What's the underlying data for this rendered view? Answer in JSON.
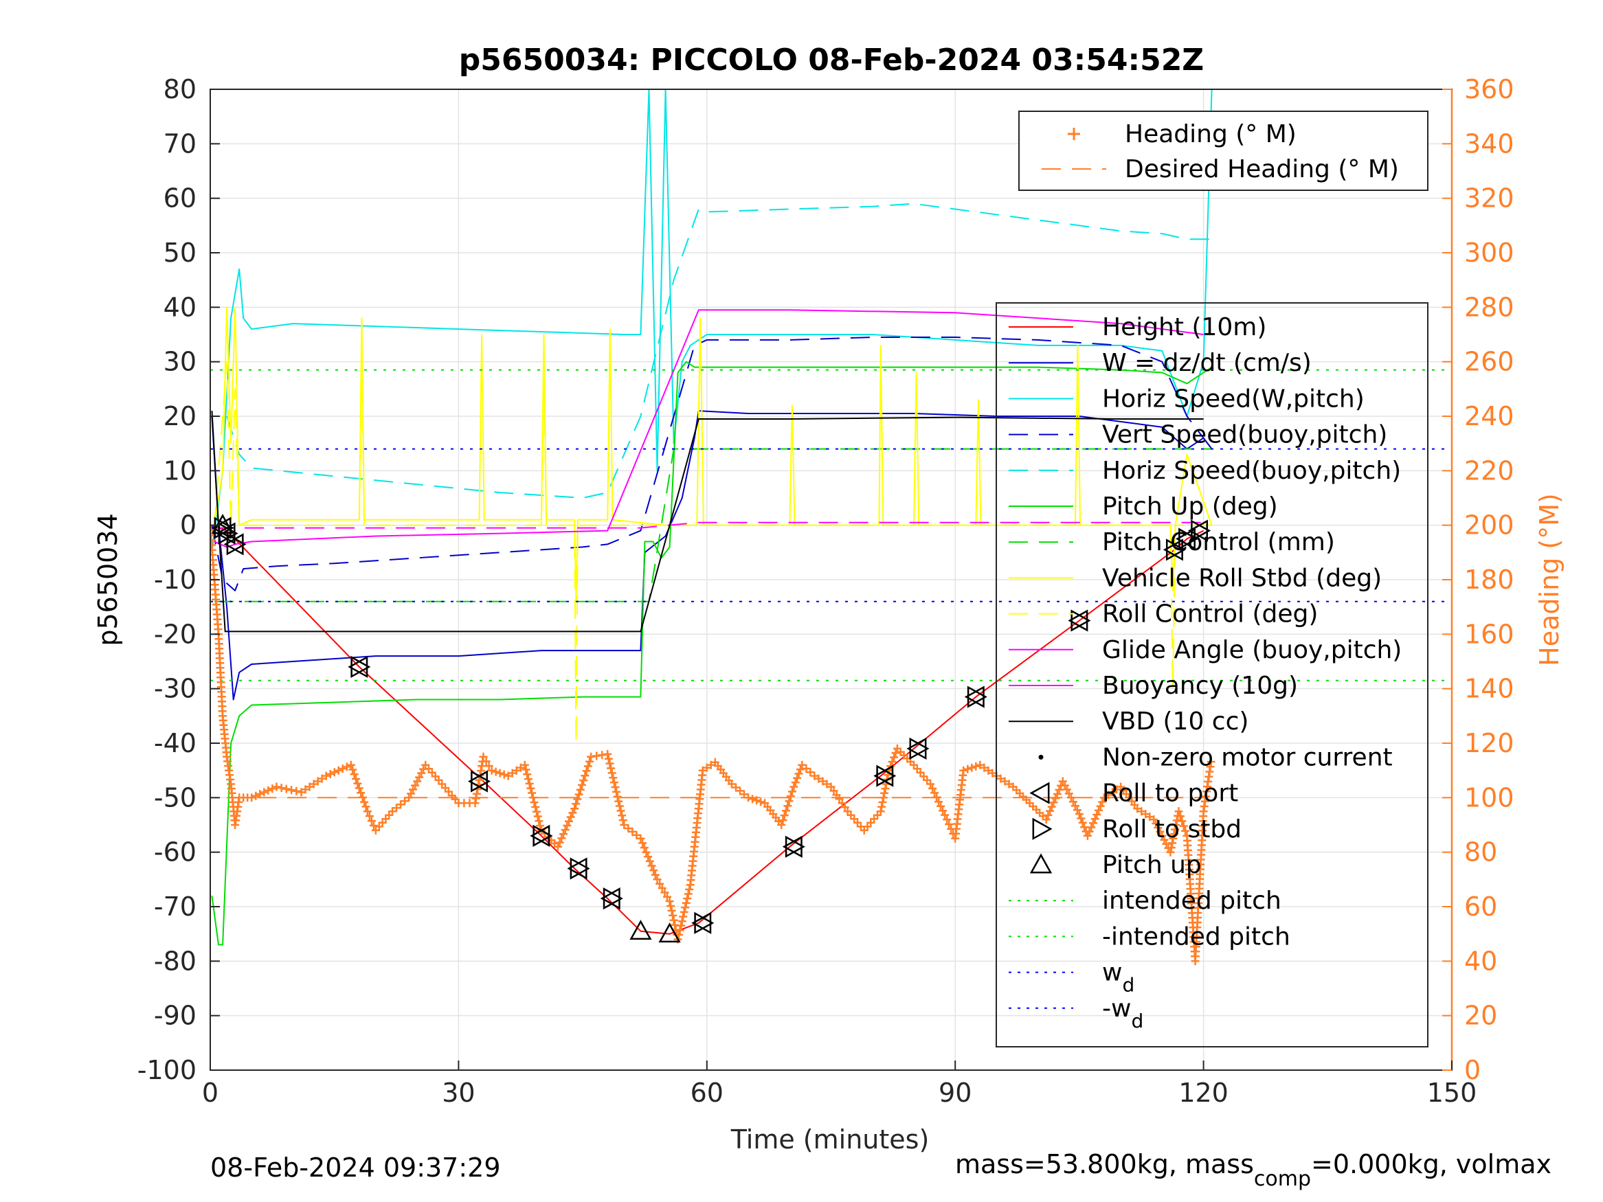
{
  "chart_data": {
    "type": "line",
    "title": "p5650034: PICCOLO 08-Feb-2024 03:54:52Z",
    "xlabel": "Time (minutes)",
    "ylabel": "p5650034",
    "y2label": "Heading (°M)",
    "xlim": [
      0,
      150
    ],
    "ylim": [
      -100,
      80
    ],
    "y2lim": [
      0,
      360
    ],
    "xticks": [
      "0",
      "30",
      "60",
      "90",
      "120",
      "150"
    ],
    "yticks": [
      "80",
      "70",
      "60",
      "50",
      "40",
      "30",
      "20",
      "10",
      "0",
      "-10",
      "-20",
      "-30",
      "-40",
      "-50",
      "-60",
      "-70",
      "-80",
      "-90",
      "-100"
    ],
    "y2ticks": [
      "360",
      "340",
      "320",
      "300",
      "280",
      "260",
      "240",
      "220",
      "200",
      "180",
      "160",
      "140",
      "120",
      "100",
      "80",
      "60",
      "40",
      "20",
      "0"
    ],
    "grid": true,
    "colors": {
      "heading": "#ff7f27",
      "height": "#ff0000",
      "w": "#0000cc",
      "horiz": "#00e5e5",
      "pitch": "#00dd00",
      "roll": "#ffff00",
      "glide": "#ff00ff",
      "vbd": "#000000",
      "wd": "#0000ff"
    },
    "legend_top": {
      "position": "top-right",
      "entries": [
        {
          "label": "Heading (° M)",
          "color": "#ff7f27",
          "style": "plus"
        },
        {
          "label": "Desired Heading (° M)",
          "color": "#ff7f27",
          "style": "dashed"
        }
      ]
    },
    "legend_main": {
      "position": "right",
      "entries": [
        {
          "label": "Height (10m)",
          "color": "#ff0000",
          "style": "solid"
        },
        {
          "label": "W = dz/dt (cm/s)",
          "color": "#0000cc",
          "style": "solid"
        },
        {
          "label": "Horiz Speed(W,pitch)",
          "color": "#00e5e5",
          "style": "solid"
        },
        {
          "label": "Vert Speed(buoy,pitch)",
          "color": "#0000cc",
          "style": "dashed"
        },
        {
          "label": "Horiz Speed(buoy,pitch)",
          "color": "#00e5e5",
          "style": "dashed"
        },
        {
          "label": "Pitch Up (deg)",
          "color": "#00dd00",
          "style": "solid"
        },
        {
          "label": "Pitch Control (mm)",
          "color": "#00dd00",
          "style": "dashed"
        },
        {
          "label": "Vehicle Roll Stbd (deg)",
          "color": "#ffff00",
          "style": "solid"
        },
        {
          "label": "Roll Control (deg)",
          "color": "#ffff00",
          "style": "dashed"
        },
        {
          "label": "Glide Angle (buoy,pitch)",
          "color": "#ff00ff",
          "style": "solid"
        },
        {
          "label": "Buoyancy (10g)",
          "color": "#ff00ff",
          "style": "solid"
        },
        {
          "label": "VBD (10 cc)",
          "color": "#000000",
          "style": "solid"
        },
        {
          "label": "Non-zero motor current",
          "color": "#000000",
          "style": "dot"
        },
        {
          "label": "Roll to port",
          "color": "#000000",
          "style": "tri-left"
        },
        {
          "label": "Roll to stbd",
          "color": "#000000",
          "style": "tri-right"
        },
        {
          "label": "Pitch up",
          "color": "#000000",
          "style": "tri-up"
        },
        {
          "label": "intended pitch",
          "color": "#00dd00",
          "style": "dotted"
        },
        {
          "label": "-intended pitch",
          "color": "#00dd00",
          "style": "dotted"
        },
        {
          "label": "w",
          "sub": "d",
          "color": "#0000ff",
          "style": "dotted"
        },
        {
          "label": "-w",
          "sub": "d",
          "color": "#0000ff",
          "style": "dotted"
        }
      ]
    },
    "series": [
      {
        "key": "height",
        "color": "#ff0000",
        "dash": "",
        "width": 2,
        "axis": "left",
        "x": [
          0,
          2,
          18,
          33,
          40,
          44,
          48,
          52,
          55.5,
          59,
          70,
          81,
          85,
          92.5,
          105,
          116.5,
          118,
          120
        ],
        "y": [
          0,
          -1,
          -26,
          -47,
          -57,
          -63,
          -68.5,
          -74.5,
          -75,
          -73,
          -59,
          -46,
          -41,
          -31.5,
          -17.5,
          -4.5,
          -2.5,
          -1
        ]
      },
      {
        "key": "w",
        "color": "#0000cc",
        "dash": "",
        "width": 2,
        "axis": "left",
        "x": [
          0.2,
          1,
          2,
          2.8,
          3.5,
          5,
          10,
          20,
          30,
          40,
          50,
          52,
          52.5,
          55,
          57,
          58.5,
          59,
          65,
          75,
          85,
          95,
          105,
          110,
          115,
          118,
          120,
          121
        ],
        "y": [
          20,
          0,
          -15,
          -32,
          -27,
          -25.5,
          -25,
          -24,
          -24,
          -23,
          -23,
          -23,
          -5,
          -2,
          5,
          16,
          21,
          20.5,
          20.5,
          20.5,
          20,
          20,
          19,
          18,
          14,
          16,
          14
        ]
      },
      {
        "key": "horiz_w",
        "color": "#00e5e5",
        "dash": "",
        "width": 2,
        "axis": "left",
        "x": [
          0.2,
          1.5,
          2.5,
          3.5,
          4,
          5,
          10,
          20,
          30,
          40,
          50,
          52,
          53,
          54,
          55,
          56,
          57,
          58,
          60,
          70,
          80,
          90,
          100,
          110,
          115,
          118,
          120,
          121
        ],
        "y": [
          -5,
          10,
          38,
          47,
          38,
          36,
          37,
          36.5,
          36,
          35.5,
          35,
          35,
          80,
          10,
          80,
          15,
          30,
          33,
          35,
          35,
          35,
          34,
          33,
          33,
          32,
          20,
          30,
          80
        ]
      },
      {
        "key": "vert_buoy",
        "color": "#0000cc",
        "dash": "28,16",
        "width": 2,
        "axis": "left",
        "x": [
          0.2,
          1.5,
          3,
          4,
          8,
          15,
          25,
          35,
          45,
          48,
          52,
          56,
          58.5,
          60,
          70,
          80,
          90,
          100,
          110,
          115,
          118,
          121
        ],
        "y": [
          0,
          -10,
          -12,
          -8,
          -7.5,
          -7,
          -6,
          -5,
          -4,
          -3.5,
          -1,
          20,
          33,
          34,
          34,
          34.5,
          34.5,
          34,
          33,
          30,
          20,
          14
        ]
      },
      {
        "key": "horiz_buoy",
        "color": "#00e5e5",
        "dash": "28,16",
        "width": 2,
        "axis": "left",
        "x": [
          2,
          3.5,
          5,
          15,
          25,
          35,
          45,
          48,
          52,
          56,
          59,
          60,
          70,
          80,
          85,
          90,
          100,
          110,
          115,
          118,
          121
        ],
        "y": [
          20,
          13,
          10.5,
          9,
          7.5,
          6,
          5,
          6,
          20,
          45,
          58,
          57.5,
          58,
          58.5,
          59,
          58,
          56,
          54,
          53.5,
          52.5,
          52.5
        ]
      },
      {
        "key": "pitch_up",
        "color": "#00dd00",
        "dash": "",
        "width": 2,
        "axis": "left",
        "x": [
          0.2,
          1,
          1.5,
          2.5,
          3.5,
          5,
          15,
          25,
          35,
          45,
          52,
          52.5,
          53.5,
          54.5,
          55.5,
          56.5,
          57.5,
          58.5,
          60,
          70,
          80,
          90,
          100,
          110,
          115,
          118,
          121
        ],
        "y": [
          -68,
          -77,
          -77,
          -40,
          -35,
          -33,
          -32.5,
          -32,
          -32,
          -31.5,
          -31.5,
          -3,
          -3,
          -6,
          -4,
          28,
          30,
          29,
          29,
          29,
          29,
          29,
          29,
          28.5,
          28,
          26,
          29
        ]
      },
      {
        "key": "pitch_ctrl",
        "color": "#00dd00",
        "dash": "28,16",
        "width": 2,
        "axis": "left",
        "x": [
          0.5,
          2,
          52,
          53,
          56,
          121
        ],
        "y": [
          -14,
          -14,
          -14,
          -14,
          14,
          14
        ]
      },
      {
        "key": "roll",
        "color": "#ffff00",
        "dash": "",
        "width": 2,
        "axis": "left",
        "x": [
          0.5,
          1.5,
          2,
          2.5,
          3,
          3.5,
          5,
          18,
          18.3,
          18.6,
          30,
          32.5,
          32.8,
          33.1,
          40,
          40.3,
          40.6,
          44,
          44.2,
          44.4,
          48,
          48.3,
          48.6,
          55,
          58.8,
          59.2,
          59.6,
          70,
          70.3,
          70.6,
          80.8,
          81,
          81.3,
          85,
          85.3,
          85.6,
          92.5,
          92.8,
          93.1,
          104.5,
          104.8,
          105.1,
          116,
          116.3,
          116.6,
          118,
          121
        ],
        "y": [
          0,
          10,
          40,
          15,
          40,
          0,
          1,
          1,
          38,
          1,
          1,
          1,
          35,
          1,
          1,
          35,
          1,
          1,
          -14,
          1,
          1,
          36,
          1,
          0,
          0,
          38,
          0,
          0,
          22,
          0,
          0,
          33,
          0,
          0,
          28,
          0,
          0,
          23,
          0,
          0,
          33,
          0,
          0,
          -12,
          0,
          13,
          0
        ]
      },
      {
        "key": "roll_ctrl",
        "color": "#ffff00",
        "dash": "28,16",
        "width": 2,
        "axis": "left",
        "x": [
          0.5,
          2,
          2.5,
          3,
          3.5,
          18,
          18.3,
          18.6,
          40,
          40.3,
          40.6,
          44,
          44.2,
          44.4,
          116,
          116.3,
          116.6,
          121
        ],
        "y": [
          0,
          30,
          0,
          25,
          0,
          0,
          30,
          0,
          0,
          28,
          0,
          0,
          -40,
          0,
          0,
          -30,
          0,
          0
        ]
      },
      {
        "key": "glide",
        "color": "#ff00ff",
        "dash": "",
        "width": 2,
        "axis": "left",
        "x": [
          0.5,
          2,
          3,
          5,
          20,
          35,
          48,
          59,
          70,
          90,
          110,
          120
        ],
        "y": [
          -3,
          -4,
          -3.5,
          -3,
          -2,
          -1.5,
          -1,
          39.5,
          39.5,
          39,
          37,
          35
        ]
      },
      {
        "key": "buoyancy",
        "color": "#ff00ff",
        "dash": "28,16",
        "width": 2,
        "axis": "left",
        "x": [
          0.5,
          52,
          59,
          121
        ],
        "y": [
          -0.5,
          -0.5,
          0.5,
          0.5
        ]
      },
      {
        "key": "vbd",
        "color": "#000000",
        "dash": "",
        "width": 2,
        "axis": "left",
        "x": [
          0.2,
          1,
          1.8,
          20,
          40,
          52,
          59,
          70,
          90,
          110,
          118,
          120
        ],
        "y": [
          21,
          0,
          -19.5,
          -19.5,
          -19.5,
          -19.5,
          19.5,
          19.5,
          19.8,
          19.5,
          19.5,
          19.5
        ]
      },
      {
        "key": "intended_pos",
        "color": "#00dd00",
        "dash": "4,10",
        "width": 2,
        "axis": "left",
        "x": [
          0,
          150
        ],
        "y": [
          28.5,
          28.5
        ]
      },
      {
        "key": "intended_neg",
        "color": "#00dd00",
        "dash": "4,10",
        "width": 2,
        "axis": "left",
        "x": [
          0,
          150
        ],
        "y": [
          -28.5,
          -28.5
        ]
      },
      {
        "key": "wd_pos",
        "color": "#0000ff",
        "dash": "4,10",
        "width": 2,
        "axis": "left",
        "x": [
          0,
          150
        ],
        "y": [
          14,
          14
        ]
      },
      {
        "key": "wd_neg",
        "color": "#0000ff",
        "dash": "4,10",
        "width": 2,
        "axis": "left",
        "x": [
          0,
          150
        ],
        "y": [
          -14,
          -14
        ]
      },
      {
        "key": "desired_heading",
        "color": "#ff7f27",
        "dash": "28,16",
        "width": 2,
        "axis": "right",
        "x": [
          2,
          120
        ],
        "y": [
          100,
          100
        ]
      }
    ],
    "heading": {
      "color": "#ff7f27",
      "x": [
        0,
        0.5,
        1,
        1.5,
        2,
        2.5,
        3,
        3.5,
        5,
        8,
        11,
        14,
        17,
        19,
        20,
        22,
        24,
        26,
        28,
        30,
        32,
        33,
        34,
        36,
        38,
        40,
        42,
        44,
        46,
        48,
        50,
        52,
        54,
        55.5,
        56.5,
        58,
        59.5,
        61,
        63,
        65,
        67,
        69,
        70.5,
        71.5,
        73,
        75,
        77,
        79,
        81,
        82,
        83,
        85,
        87,
        89,
        90,
        91,
        93,
        95,
        97,
        99,
        101,
        103,
        105,
        106,
        108,
        110,
        112,
        114,
        116,
        117,
        118,
        119,
        120,
        121
      ],
      "y": [
        200,
        180,
        160,
        130,
        115,
        105,
        90,
        100,
        100,
        104,
        102,
        108,
        112,
        95,
        88,
        95,
        100,
        112,
        105,
        98,
        98,
        115,
        110,
        108,
        112,
        88,
        82,
        96,
        115,
        116,
        90,
        85,
        70,
        62,
        48,
        68,
        110,
        113,
        105,
        100,
        98,
        90,
        104,
        112,
        108,
        104,
        95,
        88,
        95,
        110,
        118,
        112,
        105,
        92,
        85,
        110,
        112,
        108,
        104,
        98,
        92,
        106,
        94,
        86,
        100,
        104,
        96,
        92,
        80,
        95,
        86,
        40,
        95,
        115
      ]
    },
    "markers": {
      "pairs": [
        [
          1.5,
          -0.5
        ],
        [
          2,
          -1.5
        ],
        [
          3,
          -3.5
        ],
        [
          18,
          -26
        ],
        [
          32.5,
          -47
        ],
        [
          40,
          -57
        ],
        [
          44.5,
          -63
        ],
        [
          48.5,
          -68.5
        ],
        [
          59.5,
          -73
        ],
        [
          70.5,
          -59
        ],
        [
          81.5,
          -46
        ],
        [
          85.5,
          -41
        ],
        [
          92.5,
          -31.5
        ],
        [
          105,
          -17.5
        ],
        [
          116.5,
          -4.5
        ],
        [
          118,
          -2.5
        ],
        [
          119.5,
          -1
        ]
      ],
      "pitch_up": [
        [
          1.5,
          0
        ],
        [
          52,
          -74.5
        ],
        [
          55.5,
          -75
        ]
      ]
    },
    "footer_left": "08-Feb-2024 09:37:29",
    "footer_right": {
      "a": "mass=53.800kg, mass",
      "sub": "comp",
      "b": "=0.000kg, volmax"
    }
  }
}
